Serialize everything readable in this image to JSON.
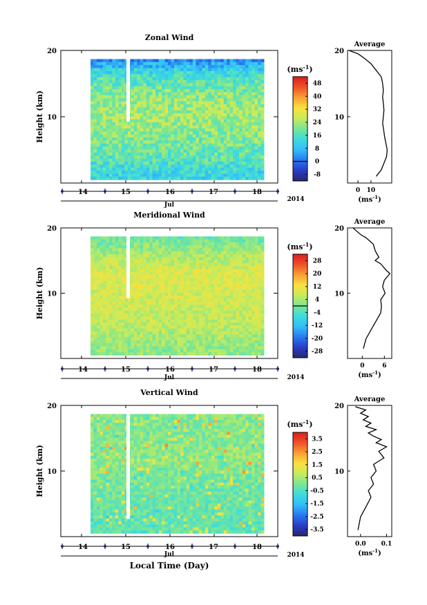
{
  "figure": {
    "x_title": "Local Time (Day)",
    "year_label": "2014",
    "month_label": "Jul",
    "date_ticks": [
      "14",
      "15",
      "16",
      "17",
      "18"
    ],
    "colorbar_unit": "(ms",
    "unit_exp": "-1",
    "unit_close": ")"
  },
  "chart_data": [
    {
      "type": "heatmap",
      "title": "Zonal Wind",
      "ylabel": "Height (km)",
      "ylim": [
        0,
        20
      ],
      "yticks": [
        10,
        20
      ],
      "xlabel": "Jul",
      "x_ticks": [
        "14",
        "15",
        "16",
        "17",
        "18"
      ],
      "colorbar_unit": "(ms-1)",
      "colorbar_ticks": [
        "48",
        "40",
        "32",
        "24",
        "16",
        "8",
        "0",
        "-8"
      ],
      "colorbar_range": [
        -12,
        52
      ],
      "contour_level": 0,
      "field_summary": [
        {
          "height_km": 1.5,
          "wind": 12
        },
        {
          "height_km": 4,
          "wind": 18
        },
        {
          "height_km": 8,
          "wind": 22
        },
        {
          "height_km": 10,
          "wind": 24
        },
        {
          "height_km": 13,
          "wind": 22
        },
        {
          "height_km": 16,
          "wind": 16
        },
        {
          "height_km": 18,
          "wind": 6
        },
        {
          "height_km": 19.5,
          "wind": -4
        }
      ]
    },
    {
      "type": "line",
      "title": "Average",
      "ylabel": "",
      "xlabel": "(ms-1)",
      "xlim": [
        -8,
        26
      ],
      "xticks": [
        0,
        10
      ],
      "ylim": [
        0,
        20
      ],
      "yticks": [
        10,
        20
      ],
      "x": [
        -7,
        0,
        5,
        10,
        14,
        18,
        19,
        19.5,
        19,
        19.5,
        20,
        19.5,
        19,
        19.8,
        20.5,
        21.5,
        22.5,
        22,
        20,
        18,
        14
      ],
      "y": [
        20,
        19.5,
        18.8,
        18,
        17,
        16,
        15,
        14,
        13,
        12,
        11,
        10,
        9,
        8,
        7,
        6,
        5,
        4,
        3,
        2,
        1
      ]
    },
    {
      "type": "heatmap",
      "title": "Meridional Wind",
      "ylabel": "Height (km)",
      "ylim": [
        0,
        20
      ],
      "yticks": [
        10,
        20
      ],
      "xlabel": "Jul",
      "x_ticks": [
        "14",
        "15",
        "16",
        "17",
        "18"
      ],
      "colorbar_unit": "(ms-1)",
      "colorbar_ticks": [
        "28",
        "20",
        "12",
        "4",
        "-4",
        "-12",
        "-20",
        "-28"
      ],
      "colorbar_range": [
        -32,
        32
      ],
      "contour_level": 0,
      "field_summary": [
        {
          "height_km": 1.5,
          "wind": 2
        },
        {
          "height_km": 5,
          "wind": 6
        },
        {
          "height_km": 10,
          "wind": 8
        },
        {
          "height_km": 13,
          "wind": 9
        },
        {
          "height_km": 16,
          "wind": 4
        },
        {
          "height_km": 19,
          "wind": -2
        }
      ]
    },
    {
      "type": "line",
      "title": "Average",
      "ylabel": "",
      "xlabel": "(ms-1)",
      "xlim": [
        -4,
        8
      ],
      "xticks": [
        0,
        6
      ],
      "ylim": [
        0,
        20
      ],
      "yticks": [
        10,
        20
      ],
      "x": [
        -2.5,
        -1.5,
        -0.5,
        1,
        2,
        3,
        3.5,
        4.5,
        3.5,
        5,
        6.5,
        7.5,
        6,
        5.5,
        6.2,
        5,
        5.2,
        5,
        4,
        3,
        2,
        1,
        0.3
      ],
      "y": [
        20,
        19.5,
        19,
        18.5,
        18,
        17.5,
        16.5,
        15.5,
        15,
        14.5,
        13.5,
        13,
        12,
        11,
        10,
        9,
        8,
        7,
        6,
        5,
        4,
        3,
        1.5
      ]
    },
    {
      "type": "heatmap",
      "title": "Vertical Wind",
      "ylabel": "Height (km)",
      "ylim": [
        0,
        20
      ],
      "yticks": [
        10,
        20
      ],
      "xlabel": "Jul",
      "x_ticks": [
        "14",
        "15",
        "16",
        "17",
        "18"
      ],
      "colorbar_unit": "(ms-1)",
      "colorbar_ticks": [
        "3.5",
        "2.5",
        "1.5",
        "0.5",
        "-0.5",
        "-1.5",
        "-2.5",
        "-3.5"
      ],
      "colorbar_range": [
        -4,
        4
      ],
      "field_summary": [
        {
          "height_km": 2,
          "wind": -0.3
        },
        {
          "height_km": 8,
          "wind": -0.1
        },
        {
          "height_km": 12,
          "wind": 0.2
        },
        {
          "height_km": 17,
          "wind": 0.1
        }
      ]
    },
    {
      "type": "line",
      "title": "Average",
      "ylabel": "",
      "xlabel": "(ms-1)",
      "xlim": [
        -0.05,
        0.12
      ],
      "xticks": [
        0.0,
        0.1
      ],
      "ylim": [
        0,
        20
      ],
      "yticks": [
        10,
        20
      ],
      "x": [
        -0.02,
        0.02,
        0.0,
        0.03,
        0.01,
        0.04,
        0.02,
        0.06,
        0.03,
        0.05,
        0.08,
        0.06,
        0.1,
        0.07,
        0.09,
        0.05,
        0.06,
        0.04,
        0.05,
        0.03,
        0.04,
        0.02,
        0.0,
        -0.01
      ],
      "y": [
        19.8,
        19.3,
        18.8,
        18.3,
        17.8,
        17.3,
        16.8,
        16.3,
        15.8,
        15.3,
        14.8,
        14.3,
        13.7,
        13,
        12,
        11,
        10,
        9,
        8,
        7,
        6,
        4.5,
        3,
        1
      ]
    }
  ]
}
